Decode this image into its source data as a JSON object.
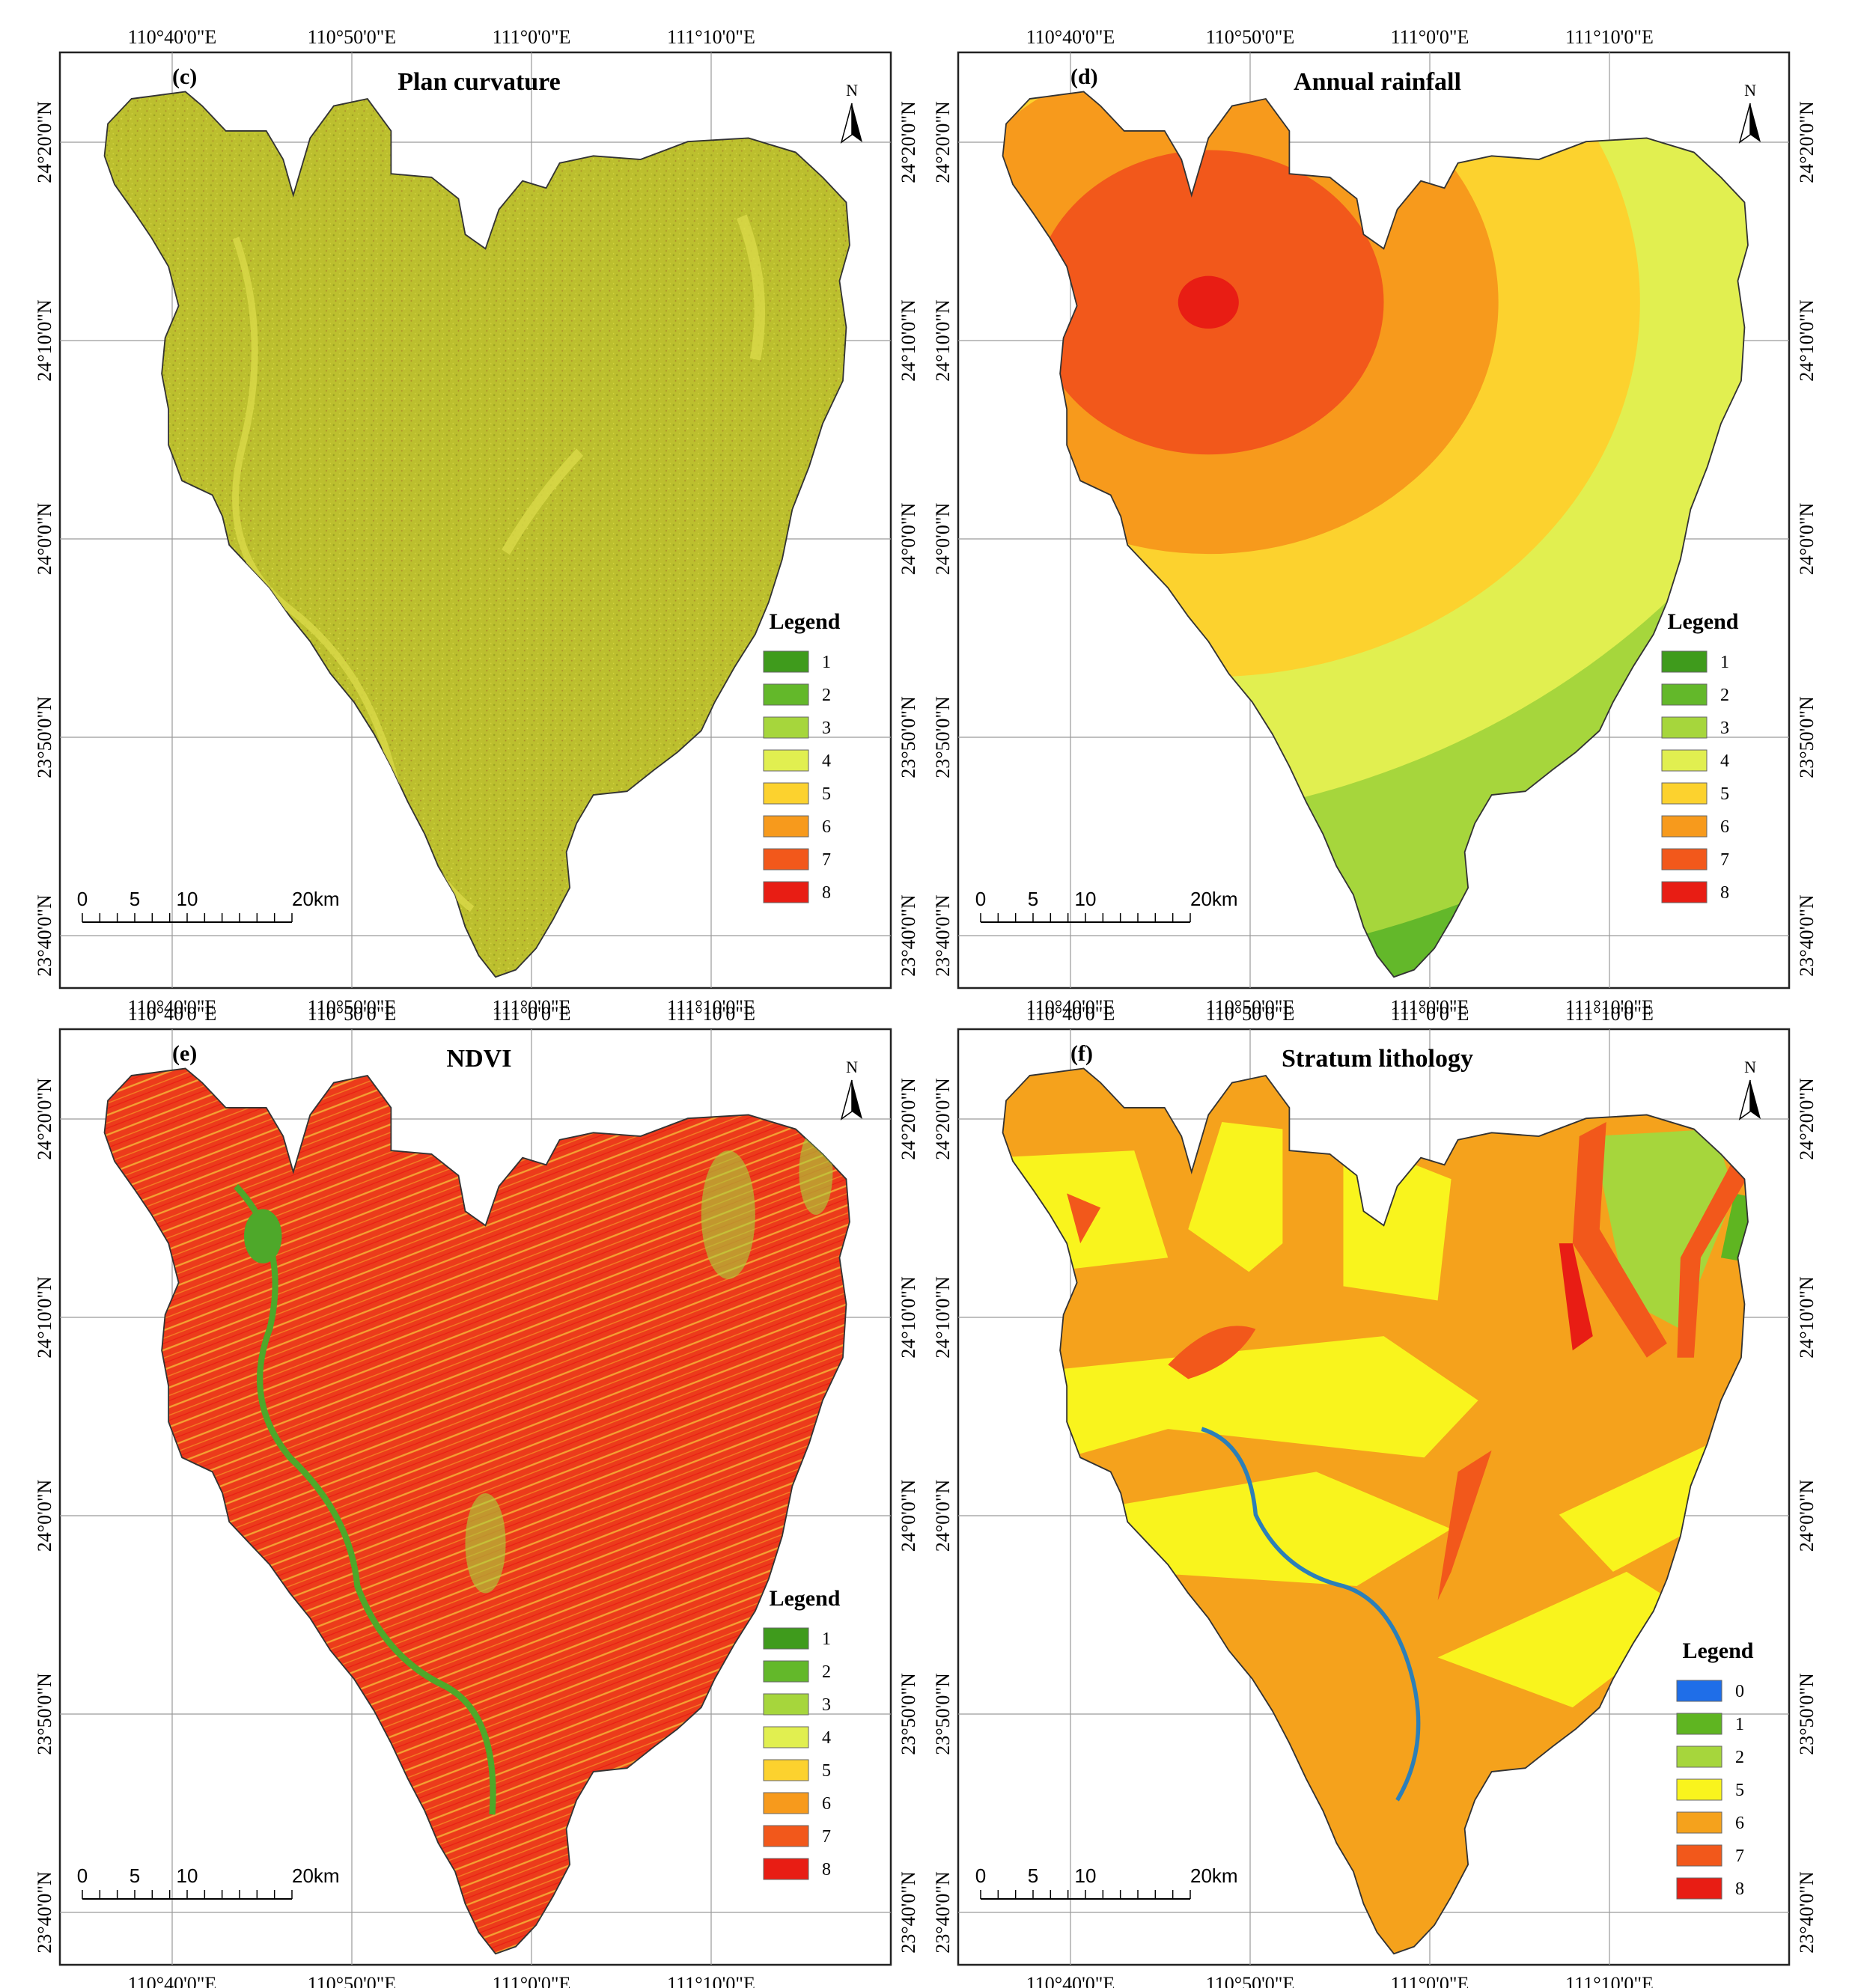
{
  "figure": {
    "panels": [
      {
        "id": "c",
        "letter": "(c)",
        "title": "Plan curvature",
        "north": "N",
        "legend": {
          "title": "Legend",
          "items": [
            {
              "label": "1",
              "color": "#3f9b1c"
            },
            {
              "label": "2",
              "color": "#63b82a"
            },
            {
              "label": "3",
              "color": "#a6d63c"
            },
            {
              "label": "4",
              "color": "#e1ef50"
            },
            {
              "label": "5",
              "color": "#fcd22e"
            },
            {
              "label": "6",
              "color": "#f79a1c"
            },
            {
              "label": "7",
              "color": "#f2581b"
            },
            {
              "label": "8",
              "color": "#e81d14"
            }
          ]
        },
        "scale": {
          "labels": [
            "0",
            "5",
            "10",
            "20km"
          ]
        },
        "lon_ticks": [
          "110°40'0\"E",
          "110°50'0\"E",
          "111°0'0\"E",
          "111°10'0\"E"
        ],
        "lat_ticks": [
          "24°20'0\"N",
          "24°10'0\"N",
          "24°0'0\"N",
          "23°50'0\"N",
          "23°40'0\"N"
        ]
      },
      {
        "id": "d",
        "letter": "(d)",
        "title": "Annual rainfall",
        "north": "N",
        "legend": {
          "title": "Legend",
          "items": [
            {
              "label": "1",
              "color": "#3f9b1c"
            },
            {
              "label": "2",
              "color": "#63b82a"
            },
            {
              "label": "3",
              "color": "#a6d63c"
            },
            {
              "label": "4",
              "color": "#e1ef50"
            },
            {
              "label": "5",
              "color": "#fcd22e"
            },
            {
              "label": "6",
              "color": "#f79a1c"
            },
            {
              "label": "7",
              "color": "#f2581b"
            },
            {
              "label": "8",
              "color": "#e81d14"
            }
          ]
        },
        "scale": {
          "labels": [
            "0",
            "5",
            "10",
            "20km"
          ]
        },
        "lon_ticks": [
          "110°40'0\"E",
          "110°50'0\"E",
          "111°0'0\"E",
          "111°10'0\"E"
        ],
        "lat_ticks": [
          "24°20'0\"N",
          "24°10'0\"N",
          "24°0'0\"N",
          "23°50'0\"N",
          "23°40'0\"N"
        ]
      },
      {
        "id": "e",
        "letter": "(e)",
        "title": "NDVI",
        "north": "N",
        "legend": {
          "title": "Legend",
          "items": [
            {
              "label": "1",
              "color": "#3f9b1c"
            },
            {
              "label": "2",
              "color": "#63b82a"
            },
            {
              "label": "3",
              "color": "#a6d63c"
            },
            {
              "label": "4",
              "color": "#e1ef50"
            },
            {
              "label": "5",
              "color": "#fcd22e"
            },
            {
              "label": "6",
              "color": "#f79a1c"
            },
            {
              "label": "7",
              "color": "#f2581b"
            },
            {
              "label": "8",
              "color": "#e81d14"
            }
          ]
        },
        "scale": {
          "labels": [
            "0",
            "5",
            "10",
            "20km"
          ]
        },
        "lon_ticks": [
          "110°40'0\"E",
          "110°50'0\"E",
          "111°0'0\"E",
          "111°10'0\"E"
        ],
        "lat_ticks": [
          "24°20'0\"N",
          "24°10'0\"N",
          "24°0'0\"N",
          "23°50'0\"N",
          "23°40'0\"N"
        ]
      },
      {
        "id": "f",
        "letter": "(f)",
        "title": "Stratum lithology",
        "north": "N",
        "legend": {
          "title": "Legend",
          "items": [
            {
              "label": "0",
              "color": "#1f6ee8"
            },
            {
              "label": "1",
              "color": "#5fb521"
            },
            {
              "label": "2",
              "color": "#a6d63c"
            },
            {
              "label": "5",
              "color": "#f9f41d"
            },
            {
              "label": "6",
              "color": "#f5a21c"
            },
            {
              "label": "7",
              "color": "#f2581b"
            },
            {
              "label": "8",
              "color": "#e81d14"
            }
          ]
        },
        "scale": {
          "labels": [
            "0",
            "5",
            "10",
            "20km"
          ]
        },
        "lon_ticks": [
          "110°40'0\"E",
          "110°50'0\"E",
          "111°0'0\"E",
          "111°10'0\"E"
        ],
        "lat_ticks": [
          "24°20'0\"N",
          "24°10'0\"N",
          "24°0'0\"N",
          "23°50'0\"N",
          "23°40'0\"N"
        ]
      }
    ],
    "colors": {
      "plan_curvature_fill": "#bcbf2e",
      "plan_curvature_speckle": "#d9da48",
      "ndvi_fill": "#ec3b1b",
      "ndvi_streak": "#f6c33a",
      "river_ndvi": "#4ea82a",
      "river_lithology": "#2c7fb8"
    }
  }
}
